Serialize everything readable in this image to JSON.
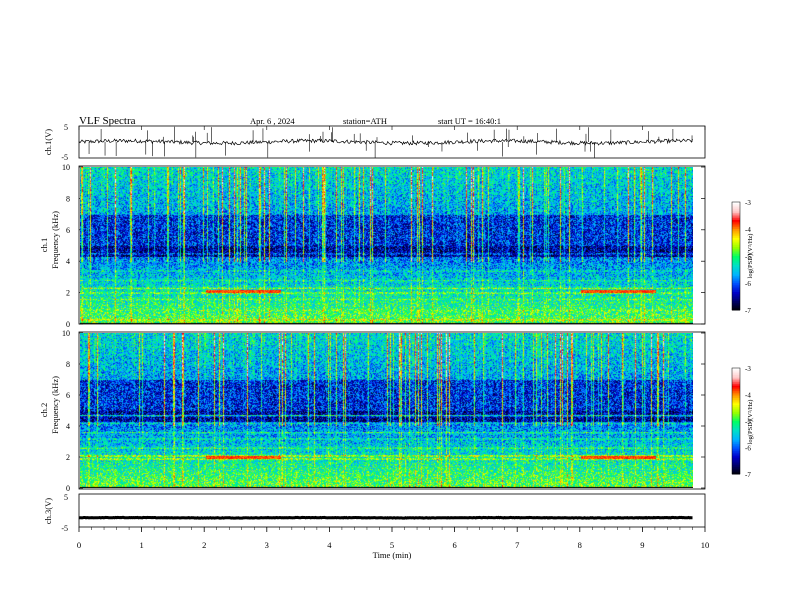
{
  "header": {
    "title": "VLF Spectra",
    "date": "Apr. 6 , 2024",
    "station": "station=ATH",
    "start": "start UT = 16:40:1"
  },
  "chart_data": [
    {
      "type": "line",
      "name": "ch1-waveform",
      "ylabel": "ch.1(V)",
      "ylim": [
        -5,
        5
      ],
      "yticks": [
        "5",
        "-5"
      ],
      "xlim": [
        0,
        10
      ],
      "baseline": 0.0,
      "trace_color": "#000000"
    },
    {
      "type": "heatmap",
      "name": "ch1-spectrogram",
      "ylabel_top": "ch.1",
      "ylabel": "Frequency (kHz)",
      "ylim": [
        0,
        10
      ],
      "yticks": [
        "0",
        "2",
        "4",
        "6",
        "8",
        "10"
      ],
      "xlim": [
        0,
        9.8
      ],
      "colorbar": {
        "label": "log(PSD)(V²/Hz)",
        "range": [
          -7,
          -3
        ],
        "ticks": [
          "-3",
          "-4",
          "-5",
          "-6",
          "-7"
        ]
      },
      "bands_khz": [
        {
          "f": 0.3,
          "level": -4.4
        },
        {
          "f": 0.9,
          "level": -4.8
        },
        {
          "f": 1.6,
          "level": -4.9
        },
        {
          "f": 2.0,
          "level": -4.6
        },
        {
          "f": 2.3,
          "level": -4.7
        },
        {
          "f": 2.8,
          "level": -5.2
        },
        {
          "f": 3.4,
          "level": -5.3
        },
        {
          "f": 4.1,
          "level": -5.8
        },
        {
          "f": 4.5,
          "level": -5.9
        }
      ],
      "red_segments": [
        {
          "t0": 2.0,
          "t1": 3.2,
          "f": 2.1
        },
        {
          "t0": 8.0,
          "t1": 9.2,
          "f": 2.1
        }
      ]
    },
    {
      "type": "heatmap",
      "name": "ch2-spectrogram",
      "ylabel_top": "ch.2",
      "ylabel": "Frequency (kHz)",
      "ylim": [
        0,
        10
      ],
      "yticks": [
        "0",
        "2",
        "4",
        "6",
        "8",
        "10"
      ],
      "xlim": [
        0,
        9.8
      ],
      "colorbar": {
        "label": "log(PSD)(V²/Hz)",
        "range": [
          -7,
          -3
        ],
        "ticks": [
          "-3",
          "-4",
          "-5",
          "-6",
          "-7"
        ]
      },
      "bands_khz": [
        {
          "f": 0.5,
          "level": -5.0
        },
        {
          "f": 1.0,
          "level": -5.1
        },
        {
          "f": 1.9,
          "level": -4.4
        },
        {
          "f": 2.1,
          "level": -4.3
        },
        {
          "f": 2.6,
          "level": -5.0
        },
        {
          "f": 3.2,
          "level": -5.2
        },
        {
          "f": 3.6,
          "level": -5.1
        },
        {
          "f": 4.2,
          "level": -5.4
        },
        {
          "f": 4.7,
          "level": -5.2
        }
      ],
      "red_segments": [
        {
          "t0": 2.0,
          "t1": 3.2,
          "f": 2.0
        },
        {
          "t0": 8.0,
          "t1": 9.2,
          "f": 2.0
        }
      ]
    },
    {
      "type": "line",
      "name": "ch3-waveform",
      "ylabel": "ch.3(V)",
      "ylim": [
        -5,
        5
      ],
      "yticks": [
        "5",
        "-5"
      ],
      "xlim": [
        0,
        10
      ],
      "baseline": -2.2,
      "trace_color": "#000000"
    }
  ],
  "xaxis": {
    "label": "Time (min)",
    "ticks": [
      "0",
      "1",
      "2",
      "3",
      "4",
      "5",
      "6",
      "7",
      "8",
      "9",
      "10"
    ]
  },
  "colors": {
    "cmap": [
      "#000000",
      "#000064",
      "#0000c8",
      "#0050ff",
      "#00b4ff",
      "#00e0c8",
      "#00ff64",
      "#96ff00",
      "#ffff00",
      "#ff9600",
      "#ff0000",
      "#ffc8c8",
      "#ffffff"
    ]
  }
}
